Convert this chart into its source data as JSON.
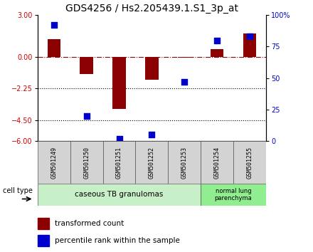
{
  "title": "GDS4256 / Hs2.205439.1.S1_3p_at",
  "samples": [
    "GSM501249",
    "GSM501250",
    "GSM501251",
    "GSM501252",
    "GSM501253",
    "GSM501254",
    "GSM501255"
  ],
  "transformed_count": [
    1.3,
    -1.2,
    -3.7,
    -1.6,
    -0.05,
    0.55,
    1.7
  ],
  "percentile_rank": [
    92,
    20,
    2,
    5,
    47,
    80,
    83
  ],
  "ylim_left": [
    -6,
    3
  ],
  "ylim_right": [
    0,
    100
  ],
  "yticks_left": [
    3,
    0,
    -2.25,
    -4.5,
    -6
  ],
  "yticks_right": [
    100,
    75,
    50,
    25,
    0
  ],
  "ytick_labels_right": [
    "100%",
    "75",
    "50",
    "25",
    "0"
  ],
  "hlines_dotted": [
    -2.25,
    -4.5
  ],
  "hline_dashed": 0,
  "bar_color": "#8B0000",
  "dot_color": "#0000CD",
  "bar_width": 0.4,
  "dot_size": 30,
  "group1_count": 5,
  "group2_count": 2,
  "group1_label": "caseous TB granulomas",
  "group2_label": "normal lung\nparenchyma",
  "group1_color": "#c8f0c8",
  "group2_color": "#90ee90",
  "sample_box_color": "#d3d3d3",
  "cell_type_label": "cell type",
  "legend_red_label": "transformed count",
  "legend_blue_label": "percentile rank within the sample",
  "background_color": "#ffffff",
  "title_fontsize": 10,
  "tick_fontsize": 7,
  "sample_fontsize": 6,
  "legend_fontsize": 7.5,
  "ct_fontsize": 7.5
}
